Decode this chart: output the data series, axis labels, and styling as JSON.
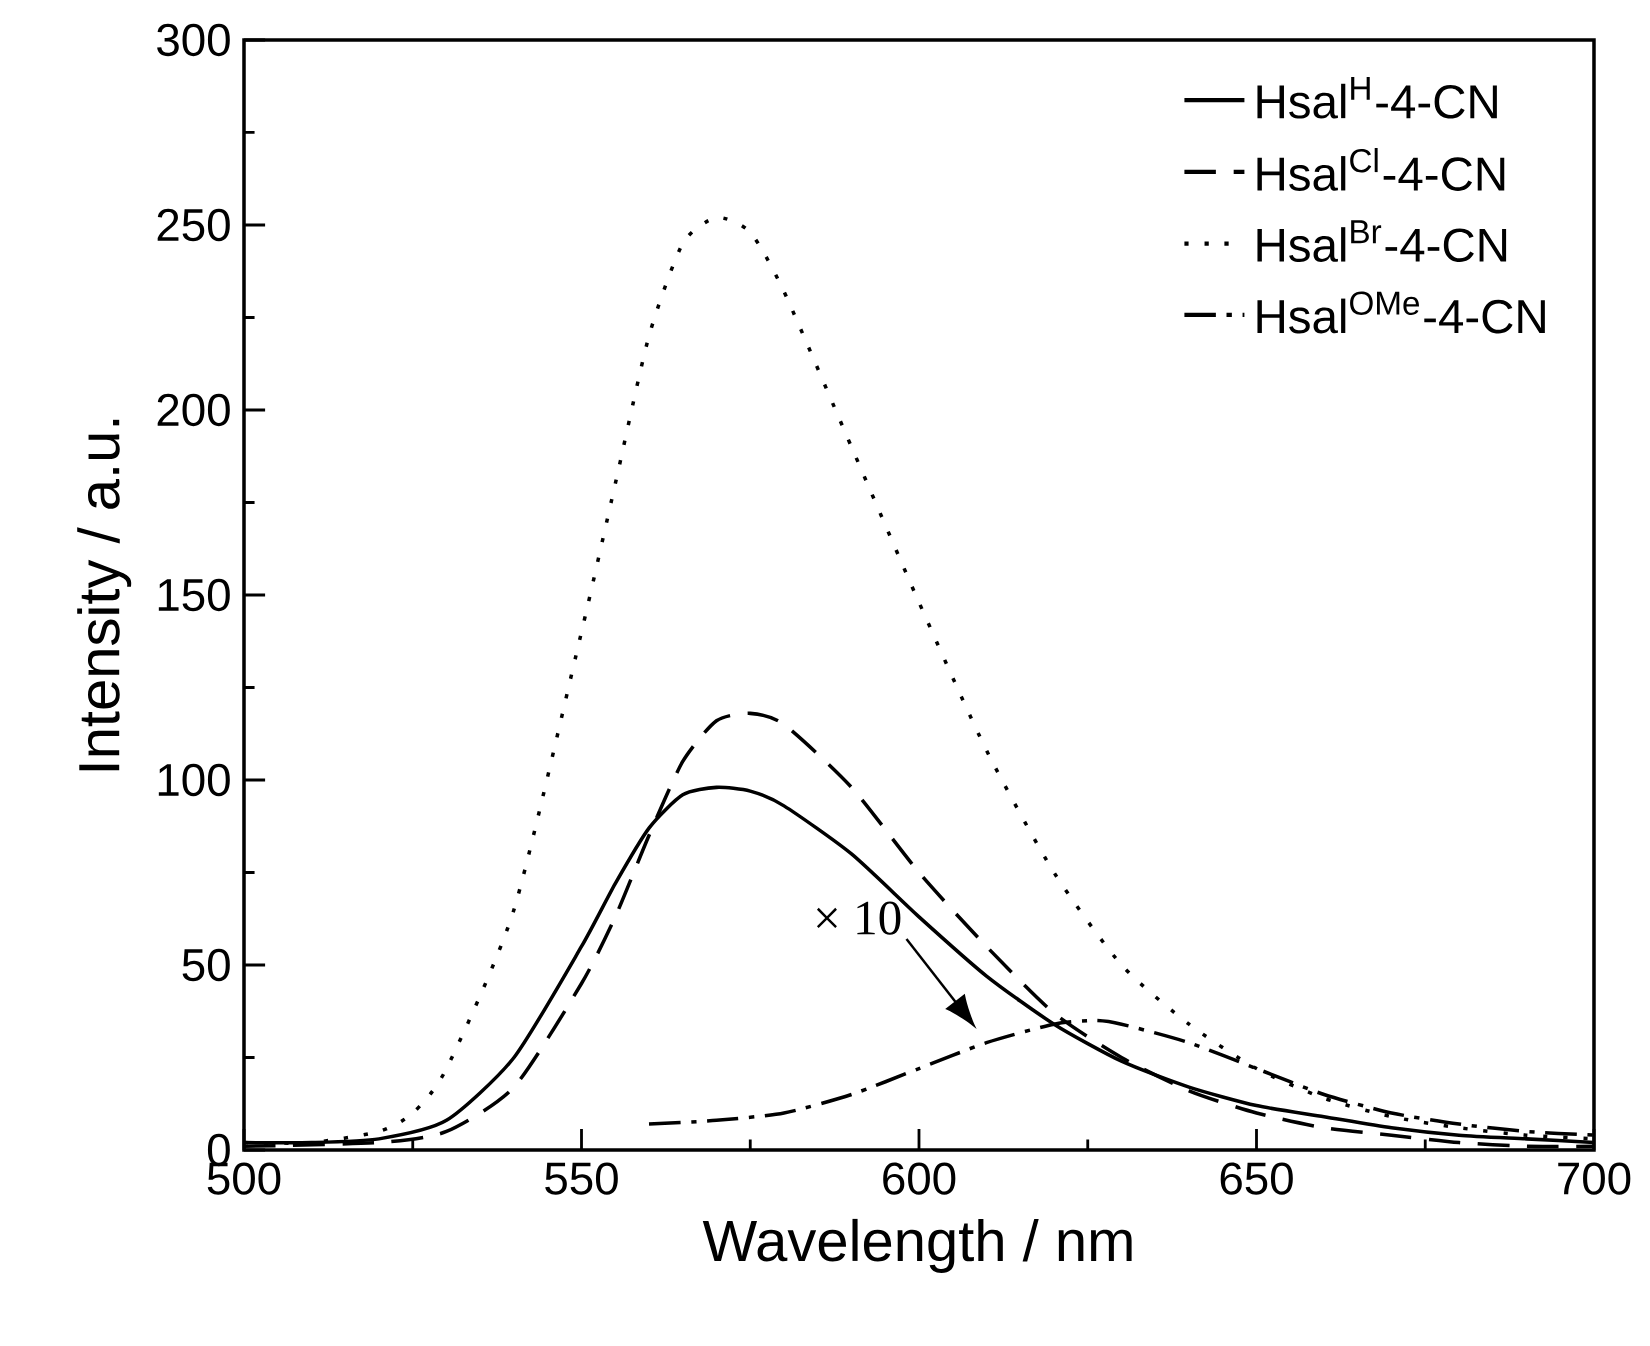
{
  "chart_data": {
    "type": "line",
    "xlabel": "Wavelength / nm",
    "ylabel": "Intensity / a.u.",
    "xlim": [
      500,
      700
    ],
    "xticks": [
      500,
      550,
      600,
      650,
      700
    ],
    "ylim": [
      0,
      300
    ],
    "yticks": [
      0,
      50,
      100,
      150,
      200,
      250,
      300
    ],
    "legend": "top right",
    "grid": false,
    "marker": "none",
    "annotations": [
      {
        "text": "× 10",
        "x": 610,
        "y": 30
      }
    ],
    "series": [
      {
        "name": "Hsal$^{H}$-4-CN",
        "color": "#000000",
        "line_style": "solid",
        "x": [
          500,
          510,
          520,
          530,
          540,
          550,
          555,
          560,
          565,
          570,
          575,
          580,
          590,
          600,
          610,
          620,
          630,
          640,
          650,
          660,
          670,
          680,
          690,
          700
        ],
        "values": [
          2,
          2,
          3,
          8,
          25,
          55,
          72,
          87,
          96,
          98,
          97,
          93,
          80,
          63,
          47,
          34,
          24,
          17,
          12,
          9,
          6,
          4,
          3,
          2
        ]
      },
      {
        "name": "Hsal$^{Cl}$-4-CN",
        "color": "#000000",
        "line_style": "dashed",
        "x": [
          500,
          520,
          530,
          540,
          550,
          555,
          560,
          565,
          570,
          575,
          580,
          590,
          600,
          610,
          620,
          630,
          640,
          650,
          660,
          670,
          680,
          690,
          700
        ],
        "values": [
          1,
          2,
          5,
          17,
          45,
          63,
          85,
          105,
          116,
          118,
          115,
          98,
          75,
          55,
          37,
          25,
          16,
          10,
          6,
          4,
          2,
          1,
          1
        ]
      },
      {
        "name": "Hsal$^{Br}$-4-CN",
        "color": "#000000",
        "line_style": "dotted",
        "x": [
          500,
          510,
          520,
          525,
          530,
          540,
          550,
          555,
          560,
          565,
          570,
          575,
          580,
          590,
          600,
          610,
          620,
          630,
          640,
          650,
          660,
          670,
          680,
          690,
          700
        ],
        "values": [
          2,
          2,
          5,
          10,
          22,
          65,
          140,
          180,
          220,
          245,
          252,
          248,
          232,
          190,
          148,
          108,
          75,
          50,
          34,
          22,
          14,
          9,
          6,
          4,
          3
        ]
      },
      {
        "name": "Hsal$^{OMe}$-4-CN",
        "color": "#000000",
        "line_style": "dashdotted",
        "x": [
          560,
          570,
          580,
          590,
          600,
          610,
          620,
          626,
          630,
          640,
          650,
          660,
          670,
          680,
          690,
          700
        ],
        "values": [
          7,
          8,
          10,
          15,
          22,
          29,
          34,
          35,
          34,
          29,
          22,
          15,
          10,
          7,
          5,
          4
        ]
      }
    ]
  }
}
